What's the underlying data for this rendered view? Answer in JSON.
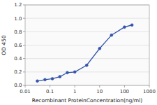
{
  "chart_data": {
    "type": "line",
    "x": [
      0.031,
      0.063,
      0.125,
      0.25,
      0.5,
      1,
      3,
      10,
      30,
      100,
      200
    ],
    "values": [
      0.065,
      0.085,
      0.1,
      0.13,
      0.19,
      0.2,
      0.3,
      0.55,
      0.75,
      0.87,
      0.9
    ],
    "color": "#3355aa",
    "marker": "circle",
    "line_style": "solid",
    "xlabel": "Recombinant ProteinConcentration(ng/ml)",
    "ylabel": "OD 450",
    "xlim": [
      0.01,
      1000
    ],
    "ylim": [
      0,
      1.2
    ],
    "xticks": [
      0.01,
      0.1,
      1,
      10,
      100,
      1000
    ],
    "yticks": [
      {
        "value": 0,
        "label": "0.0"
      },
      0.2,
      0.4,
      0.6,
      0.8,
      {
        "value": 1.0,
        "label": "1.0"
      },
      1.2
    ],
    "log": "x",
    "grid": true
  }
}
